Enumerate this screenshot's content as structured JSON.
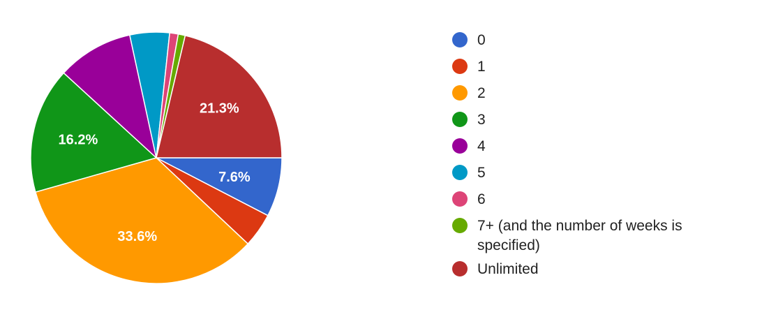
{
  "chart_data": {
    "type": "pie",
    "categories": [
      "0",
      "1",
      "2",
      "3",
      "4",
      "5",
      "6",
      "7+ (and the number of weeks is specified)",
      "Unlimited"
    ],
    "values": [
      7.6,
      4.4,
      33.6,
      16.2,
      9.8,
      5.1,
      1.1,
      0.9,
      21.3
    ],
    "colors": [
      "#3366cc",
      "#dc3912",
      "#ff9900",
      "#109618",
      "#990099",
      "#0099c6",
      "#dd4477",
      "#66aa00",
      "#b82e2e"
    ],
    "data_labels": [
      "7.6%",
      "",
      "33.6%",
      "16.2%",
      "",
      "",
      "",
      "",
      "21.3%"
    ],
    "legend_position": "right",
    "start": "3 o'clock, clockwise"
  }
}
